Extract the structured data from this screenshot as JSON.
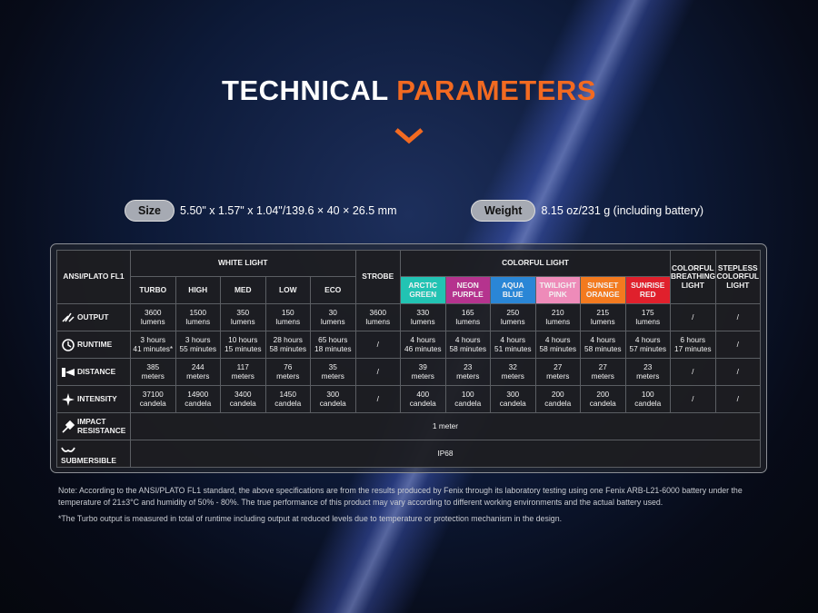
{
  "header": {
    "title_part1": "TECHNICAL",
    "title_part2": "PARAMETERS"
  },
  "specs": [
    {
      "label": "Size",
      "value": "5.50\" x 1.57\" x 1.04\"/139.6 × 40 × 26.5 mm"
    },
    {
      "label": "Weight",
      "value": "8.15 oz/231 g (including battery)"
    }
  ],
  "table": {
    "corner": "ANSI/PLATO FL1",
    "white_group": "WHITE LIGHT",
    "strobe": "STROBE",
    "color_group": "COLORFUL LIGHT",
    "breathing": "COLORFUL\nBREATHING\nLIGHT",
    "stepless": "STEPLESS\nCOLORFUL\nLIGHT",
    "white_modes": [
      "TURBO",
      "HIGH",
      "MED",
      "LOW",
      "ECO"
    ],
    "color_modes": [
      {
        "label": "ARCTIC\nGREEN",
        "color": "#22c3b3"
      },
      {
        "label": "NEON\nPURPLE",
        "color": "#b5338e"
      },
      {
        "label": "AQUA\nBLUE",
        "color": "#2a86d6"
      },
      {
        "label": "TWILIGHT\nPINK",
        "color": "#ee8bb9"
      },
      {
        "label": "SUNSET\nORANGE",
        "color": "#f37a1f"
      },
      {
        "label": "SUNRISE\nRED",
        "color": "#e0202c"
      }
    ],
    "rows": [
      {
        "label": "OUTPUT",
        "cells": [
          "3600\nlumens",
          "1500\nlumens",
          "350\nlumens",
          "150\nlumens",
          "30\nlumens",
          "3600\nlumens",
          "330\nlumens",
          "165\nlumens",
          "250\nlumens",
          "210\nlumens",
          "215\nlumens",
          "175\nlumens",
          "/",
          "/"
        ]
      },
      {
        "label": "RUNTIME",
        "cells": [
          "3 hours\n41 minutes*",
          "3 hours\n55 minutes",
          "10 hours\n15 minutes",
          "28 hours\n58 minutes",
          "65 hours\n18 minutes",
          "/",
          "4 hours\n46 minutes",
          "4 hours\n58 minutes",
          "4 hours\n51 minutes",
          "4 hours\n58 minutes",
          "4 hours\n58 minutes",
          "4 hours\n57 minutes",
          "6 hours\n17 minutes",
          "/"
        ]
      },
      {
        "label": "DISTANCE",
        "cells": [
          "385\nmeters",
          "244\nmeters",
          "117\nmeters",
          "76\nmeters",
          "35\nmeters",
          "/",
          "39\nmeters",
          "23\nmeters",
          "32\nmeters",
          "27\nmeters",
          "27\nmeters",
          "23\nmeters",
          "/",
          "/"
        ]
      },
      {
        "label": "INTENSITY",
        "cells": [
          "37100\ncandela",
          "14900\ncandela",
          "3400\ncandela",
          "1450\ncandela",
          "300\ncandela",
          "/",
          "400\ncandela",
          "100\ncandela",
          "300\ncandela",
          "200\ncandela",
          "200\ncandela",
          "100\ncandela",
          "/",
          "/"
        ]
      },
      {
        "label": "IMPACT\nRESISTANCE",
        "cells": [
          "1 meter"
        ]
      },
      {
        "label": "SUBMERSIBLE",
        "cells": [
          "IP68"
        ]
      }
    ]
  },
  "notes": [
    "Note: According to the ANSI/PLATO FL1 standard, the above specifications are from the results produced by Fenix through its laboratory testing using one Fenix ARB-L21-6000 battery under the temperature of 21±3°C and humidity of 50% - 80%. The true performance of this product may vary according to different working environments and the actual battery used.",
    "*The Turbo output is measured in total of runtime including output at reduced levels due to temperature or protection mechanism in the design."
  ]
}
